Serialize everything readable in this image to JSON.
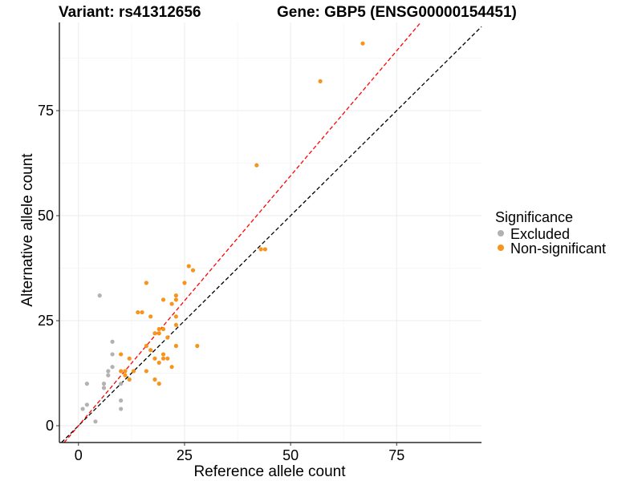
{
  "chart_data": {
    "type": "scatter",
    "title_left": "Variant: rs41312656",
    "title_right": "Gene: GBP5 (ENSG00000154451)",
    "xlabel": "Reference allele count",
    "ylabel": "Alternative allele count",
    "xlim": [
      -4.5,
      95
    ],
    "ylim": [
      -4,
      96
    ],
    "x_ticks": [
      0,
      25,
      50,
      75
    ],
    "y_ticks": [
      0,
      25,
      50,
      75
    ],
    "grid": true,
    "legend": {
      "title": "Significance",
      "position": "right",
      "entries": [
        {
          "label": "Excluded",
          "color": "#b2b2b2"
        },
        {
          "label": "Non-significant",
          "color": "#f7941d"
        }
      ]
    },
    "reference_lines": [
      {
        "slope": 1,
        "intercept": 0,
        "color": "#000000",
        "style": "dashed"
      },
      {
        "slope": 1.19,
        "intercept": 0,
        "color": "#ff0000",
        "style": "dashed"
      }
    ],
    "series": [
      {
        "name": "Excluded",
        "color": "#b2b2b2",
        "points": [
          [
            1,
            4
          ],
          [
            2,
            5
          ],
          [
            2,
            10
          ],
          [
            4,
            1
          ],
          [
            5,
            31
          ],
          [
            6,
            9
          ],
          [
            6,
            10
          ],
          [
            7,
            12
          ],
          [
            7,
            13
          ],
          [
            8,
            14
          ],
          [
            8,
            17
          ],
          [
            8,
            20
          ],
          [
            10,
            4
          ],
          [
            10,
            6
          ],
          [
            10,
            10
          ]
        ]
      },
      {
        "name": "Non-significant",
        "color": "#f7941d",
        "points": [
          [
            67,
            91
          ],
          [
            57,
            82
          ],
          [
            42,
            62
          ],
          [
            43,
            42
          ],
          [
            44,
            42
          ],
          [
            26,
            38
          ],
          [
            27,
            37
          ],
          [
            16,
            34
          ],
          [
            25,
            34
          ],
          [
            23,
            31
          ],
          [
            23,
            30
          ],
          [
            22,
            29
          ],
          [
            14,
            27
          ],
          [
            15,
            27
          ],
          [
            20,
            30
          ],
          [
            17,
            26
          ],
          [
            23,
            26
          ],
          [
            19,
            23
          ],
          [
            20,
            23
          ],
          [
            23,
            24
          ],
          [
            18,
            22
          ],
          [
            19,
            22
          ],
          [
            16,
            19
          ],
          [
            17,
            18
          ],
          [
            21,
            21
          ],
          [
            23,
            19
          ],
          [
            28,
            19
          ],
          [
            10,
            17
          ],
          [
            12,
            16
          ],
          [
            18,
            16
          ],
          [
            20,
            17
          ],
          [
            20,
            16
          ],
          [
            21,
            16
          ],
          [
            22,
            14
          ],
          [
            10,
            13
          ],
          [
            16,
            13
          ],
          [
            13,
            13
          ],
          [
            11,
            12
          ],
          [
            12,
            11
          ],
          [
            18,
            11
          ],
          [
            19,
            10
          ],
          [
            19,
            15
          ],
          [
            11,
            13
          ]
        ]
      }
    ]
  }
}
